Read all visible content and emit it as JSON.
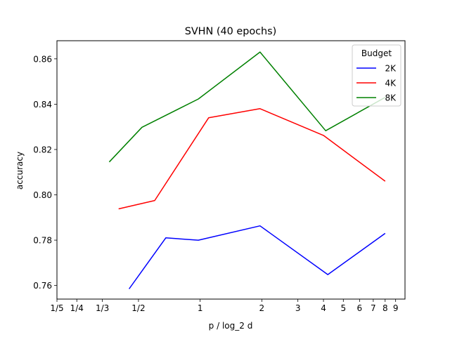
{
  "chart_data": {
    "type": "line",
    "title": "SVHN (40 epochs)",
    "xlabel": "p / log_2 d",
    "ylabel": "accuracy",
    "xscale": "log",
    "xlim": [
      0.2,
      10
    ],
    "ylim": [
      0.754,
      0.868
    ],
    "xticks": [
      {
        "value": 0.2,
        "label": "1/5"
      },
      {
        "value": 0.25,
        "label": "1/4"
      },
      {
        "value": 0.3333,
        "label": "1/3"
      },
      {
        "value": 0.5,
        "label": "1/2"
      },
      {
        "value": 1,
        "label": "1"
      },
      {
        "value": 2,
        "label": "2"
      },
      {
        "value": 3,
        "label": "3"
      },
      {
        "value": 4,
        "label": "4"
      },
      {
        "value": 5,
        "label": "5"
      },
      {
        "value": 6,
        "label": "6"
      },
      {
        "value": 7,
        "label": "7"
      },
      {
        "value": 8,
        "label": "8"
      },
      {
        "value": 9,
        "label": "9"
      }
    ],
    "yticks": [
      {
        "value": 0.76,
        "label": "0.76"
      },
      {
        "value": 0.78,
        "label": "0.78"
      },
      {
        "value": 0.8,
        "label": "0.80"
      },
      {
        "value": 0.82,
        "label": "0.82"
      },
      {
        "value": 0.84,
        "label": "0.84"
      },
      {
        "value": 0.86,
        "label": "0.86"
      }
    ],
    "grid": false,
    "legend": {
      "title": "Budget",
      "position": "top-right"
    },
    "series": [
      {
        "name": "2K",
        "color": "#0000ff",
        "x": [
          0.45,
          0.68,
          0.98,
          1.96,
          4.2,
          8.0
        ],
        "y": [
          0.7585,
          0.781,
          0.78,
          0.7863,
          0.7648,
          0.783
        ]
      },
      {
        "name": "4K",
        "color": "#ff0000",
        "x": [
          0.4,
          0.6,
          1.1,
          1.96,
          4.0,
          8.0
        ],
        "y": [
          0.7938,
          0.7975,
          0.834,
          0.838,
          0.8262,
          0.806
        ]
      },
      {
        "name": "8K",
        "color": "#008000",
        "x": [
          0.36,
          0.52,
          0.98,
          1.96,
          4.1,
          8.0
        ],
        "y": [
          0.8145,
          0.8298,
          0.8423,
          0.863,
          0.8283,
          0.843
        ]
      }
    ]
  }
}
